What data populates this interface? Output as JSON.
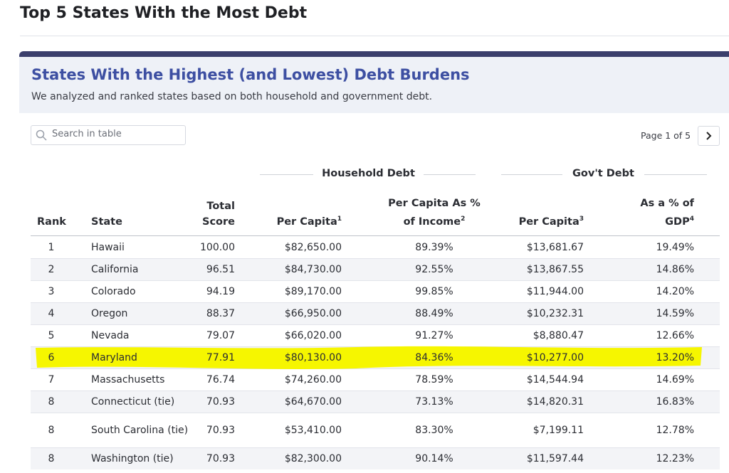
{
  "header": {
    "title": "Top 5 States With the Most Debt"
  },
  "card": {
    "title": "States With the Highest (and Lowest) Debt Burdens",
    "subtitle": "We analyzed and ranked states based on both household and government debt."
  },
  "table_controls": {
    "search_placeholder": "Search in table",
    "pagination": "Page 1 of 5"
  },
  "table": {
    "groups": [
      "Household Debt",
      "Gov't Debt"
    ],
    "columns": [
      {
        "label": "Rank"
      },
      {
        "label": "State"
      },
      {
        "label": "Total Score"
      },
      {
        "label": "Per Capita",
        "sup": "1"
      },
      {
        "label": "Per Capita As % of Income",
        "sup": "2"
      },
      {
        "label": "Per Capita",
        "sup": "3"
      },
      {
        "label": "As a % of GDP",
        "sup": "4"
      }
    ],
    "rows": [
      [
        "1",
        "Hawaii",
        "100.00",
        "$82,650.00",
        "89.39%",
        "$13,681.67",
        "19.49%"
      ],
      [
        "2",
        "California",
        "96.51",
        "$84,730.00",
        "92.55%",
        "$13,867.55",
        "14.86%"
      ],
      [
        "3",
        "Colorado",
        "94.19",
        "$89,170.00",
        "99.85%",
        "$11,944.00",
        "14.20%"
      ],
      [
        "4",
        "Oregon",
        "88.37",
        "$66,950.00",
        "88.49%",
        "$10,232.31",
        "14.59%"
      ],
      [
        "5",
        "Nevada",
        "79.07",
        "$66,020.00",
        "91.27%",
        "$8,880.47",
        "12.66%"
      ],
      [
        "6",
        "Maryland",
        "77.91",
        "$80,130.00",
        "84.36%",
        "$10,277.00",
        "13.20%"
      ],
      [
        "7",
        "Massachusetts",
        "76.74",
        "$74,260.00",
        "78.59%",
        "$14,544.94",
        "14.69%"
      ],
      [
        "8",
        "Connecticut (tie)",
        "70.93",
        "$64,670.00",
        "73.13%",
        "$14,820.31",
        "16.83%"
      ],
      [
        "8",
        "South Carolina (tie)",
        "70.93",
        "$53,410.00",
        "83.30%",
        "$7,199.11",
        "12.78%"
      ],
      [
        "8",
        "Washington (tie)",
        "70.93",
        "$82,300.00",
        "90.14%",
        "$11,597.44",
        "12.23%"
      ]
    ]
  }
}
